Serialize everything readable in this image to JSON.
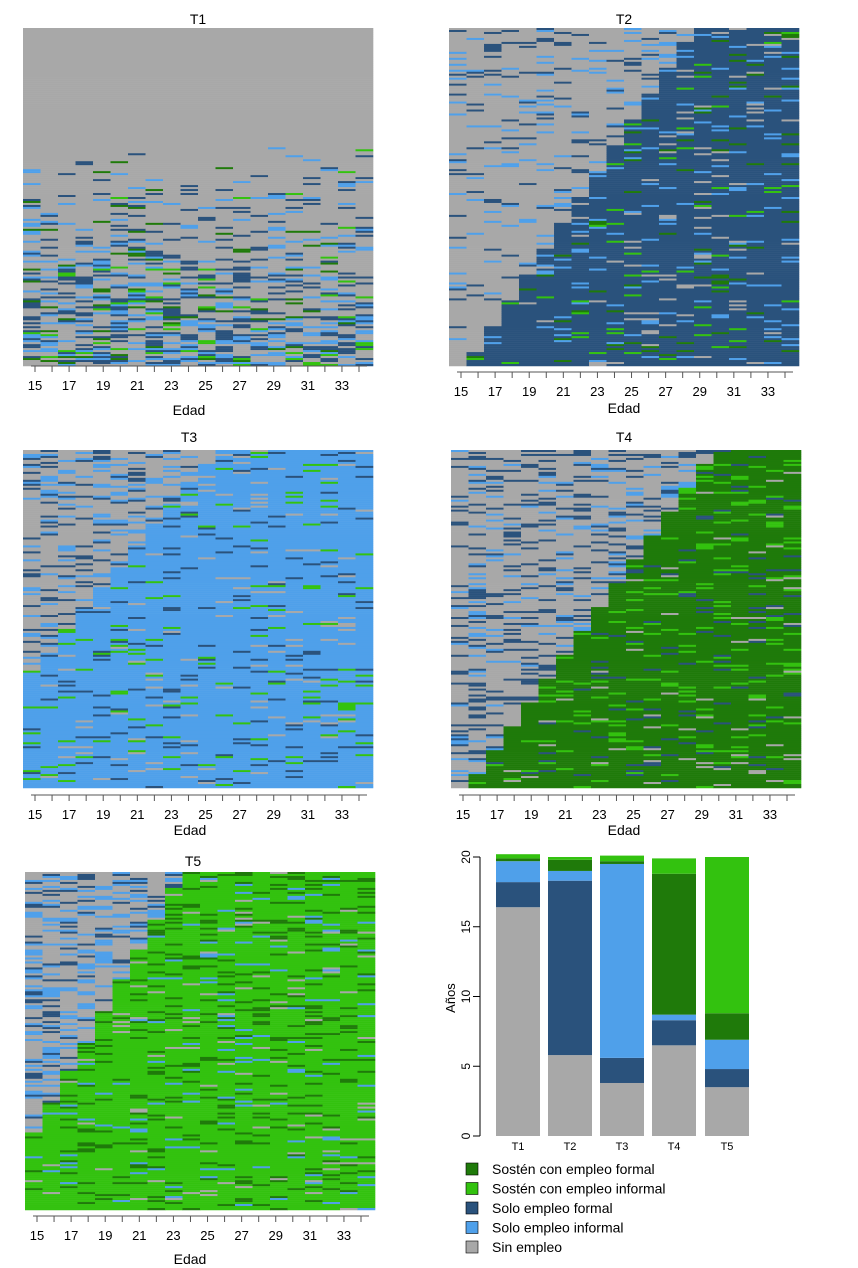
{
  "colors": {
    "sosten_formal": "#1f7a0a",
    "sosten_informal": "#33c20f",
    "solo_formal": "#2a527c",
    "solo_informal": "#4fa0ea",
    "sin_empleo": "#a8a8a8"
  },
  "sequence_panels": {
    "xlabel": "Edad",
    "age_ticks": [
      "15",
      "17",
      "19",
      "21",
      "23",
      "25",
      "27",
      "29",
      "31",
      "33"
    ],
    "age_range": [
      15,
      34
    ],
    "titles": [
      "T1",
      "T2",
      "T3",
      "T4",
      "T5"
    ]
  },
  "chart_data": {
    "type": "bar",
    "stacked": true,
    "categories": [
      "T1",
      "T2",
      "T3",
      "T4",
      "T5"
    ],
    "ylabel": "Años",
    "ylim": [
      0,
      20
    ],
    "yticks": [
      "0",
      "5",
      "10",
      "15",
      "20"
    ],
    "series": [
      {
        "name": "Sin empleo",
        "color": "#a8a8a8",
        "values": [
          16.4,
          5.8,
          3.8,
          6.5,
          3.5
        ]
      },
      {
        "name": "Solo empleo formal",
        "color": "#2a527c",
        "values": [
          1.8,
          12.5,
          1.8,
          1.8,
          1.3
        ]
      },
      {
        "name": "Solo empleo informal",
        "color": "#4fa0ea",
        "values": [
          1.5,
          0.7,
          13.9,
          0.4,
          2.1
        ]
      },
      {
        "name": "Sostén con empleo formal",
        "color": "#1f7a0a",
        "values": [
          0.2,
          0.8,
          0.2,
          10.1,
          1.9
        ]
      },
      {
        "name": "Sostén con empleo informal",
        "color": "#33c20f",
        "values": [
          0.3,
          0.2,
          0.4,
          1.1,
          11.2
        ]
      }
    ]
  },
  "legend": [
    {
      "label": "Sostén con empleo formal",
      "color": "#1f7a0a"
    },
    {
      "label": "Sostén con empleo informal",
      "color": "#33c20f"
    },
    {
      "label": "Solo empleo formal",
      "color": "#2a527c"
    },
    {
      "label": "Solo empleo informal",
      "color": "#4fa0ea"
    },
    {
      "label": "Sin empleo",
      "color": "#a8a8a8"
    }
  ]
}
